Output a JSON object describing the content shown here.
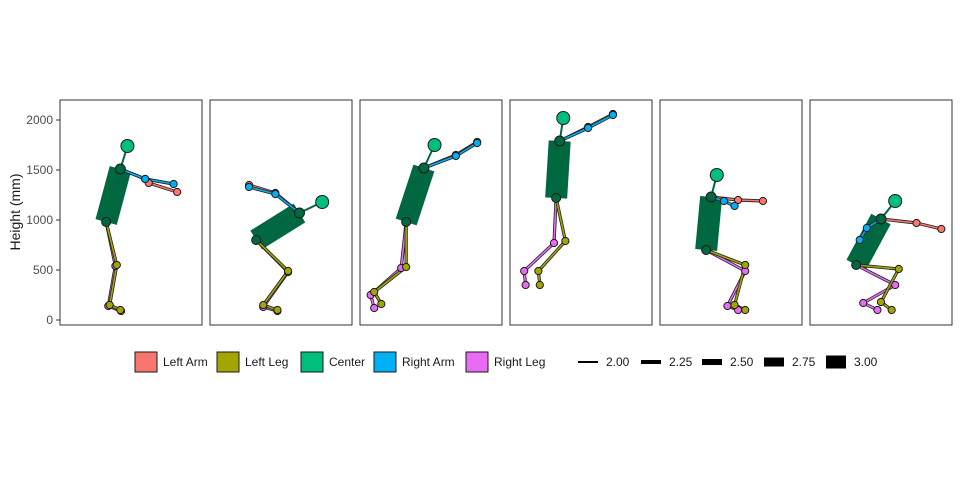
{
  "chart_data": {
    "type": "scatter",
    "ylabel": "Height (mm)",
    "ylim": [
      -50,
      2200
    ],
    "yticks": [
      0,
      500,
      1000,
      1500,
      2000
    ],
    "grid": false,
    "legend_position": "bottom",
    "colors": {
      "Left Arm": "#F8766D",
      "Left Leg": "#A3A500",
      "Center": "#00BF7D",
      "Right Arm": "#00B0F6",
      "Right Leg": "#E76BF3",
      "trunk": "#006841"
    },
    "legend": {
      "color_entries": [
        "Left Arm",
        "Left Leg",
        "Center",
        "Right Arm",
        "Right Leg"
      ],
      "size_entries": [
        "2.00",
        "2.25",
        "2.50",
        "2.75",
        "3.00"
      ]
    },
    "panels": [
      {
        "xlim": [
          0,
          10
        ],
        "head": [
          4.75,
          1740
        ],
        "neck": [
          4.25,
          1510
        ],
        "pelvis": [
          3.25,
          980
        ],
        "left_arm": [
          [
            4.25,
            1510
          ],
          [
            6.0,
            1410
          ],
          [
            6.25,
            1370
          ],
          [
            8.25,
            1280
          ]
        ],
        "right_arm": [
          [
            4.25,
            1510
          ],
          [
            6.0,
            1410
          ],
          [
            8.0,
            1360
          ]
        ],
        "left_leg": [
          [
            3.25,
            980
          ],
          [
            4.0,
            550
          ],
          [
            3.5,
            150
          ],
          [
            4.25,
            100
          ]
        ],
        "right_leg": [
          [
            3.25,
            980
          ],
          [
            3.9,
            540
          ],
          [
            3.4,
            140
          ],
          [
            4.3,
            90
          ]
        ]
      },
      {
        "xlim": [
          0,
          10
        ],
        "head": [
          7.9,
          1180
        ],
        "neck": [
          6.3,
          1070
        ],
        "pelvis": [
          3.25,
          800
        ],
        "left_arm": [
          [
            6.3,
            1070
          ],
          [
            4.6,
            1270
          ],
          [
            2.75,
            1350
          ]
        ],
        "right_arm": [
          [
            6.3,
            1070
          ],
          [
            4.6,
            1260
          ],
          [
            2.75,
            1330
          ]
        ],
        "left_leg": [
          [
            3.25,
            800
          ],
          [
            5.5,
            490
          ],
          [
            3.75,
            150
          ],
          [
            4.75,
            100
          ]
        ],
        "right_leg": [
          [
            3.25,
            800
          ],
          [
            5.5,
            480
          ],
          [
            3.75,
            130
          ],
          [
            4.75,
            90
          ]
        ]
      },
      {
        "xlim": [
          0,
          10
        ],
        "head": [
          5.25,
          1750
        ],
        "neck": [
          4.5,
          1520
        ],
        "pelvis": [
          3.25,
          980
        ],
        "left_arm": [
          [
            4.5,
            1520
          ],
          [
            6.75,
            1650
          ],
          [
            8.25,
            1780
          ]
        ],
        "right_arm": [
          [
            4.5,
            1520
          ],
          [
            6.75,
            1640
          ],
          [
            8.25,
            1770
          ]
        ],
        "left_leg": [
          [
            3.25,
            980
          ],
          [
            3.25,
            530
          ],
          [
            1.0,
            280
          ],
          [
            1.5,
            160
          ]
        ],
        "right_leg": [
          [
            3.25,
            980
          ],
          [
            2.9,
            520
          ],
          [
            0.75,
            250
          ],
          [
            1.0,
            120
          ]
        ]
      },
      {
        "xlim": [
          0,
          10
        ],
        "head": [
          3.75,
          2020
        ],
        "neck": [
          3.5,
          1790
        ],
        "pelvis": [
          3.25,
          1220
        ],
        "left_arm": [
          [
            3.5,
            1790
          ],
          [
            5.5,
            1930
          ],
          [
            7.25,
            2060
          ]
        ],
        "right_arm": [
          [
            3.5,
            1790
          ],
          [
            5.5,
            1920
          ],
          [
            7.25,
            2050
          ]
        ],
        "left_leg": [
          [
            3.25,
            1220
          ],
          [
            3.9,
            790
          ],
          [
            2.0,
            490
          ],
          [
            2.1,
            350
          ]
        ],
        "right_leg": [
          [
            3.25,
            1220
          ],
          [
            3.1,
            770
          ],
          [
            1.0,
            490
          ],
          [
            1.1,
            350
          ]
        ]
      },
      {
        "xlim": [
          0,
          10
        ],
        "head": [
          4.0,
          1450
        ],
        "neck": [
          3.6,
          1230
        ],
        "pelvis": [
          3.25,
          700
        ],
        "left_arm": [
          [
            3.6,
            1230
          ],
          [
            5.5,
            1200
          ],
          [
            7.25,
            1190
          ]
        ],
        "right_arm": [
          [
            3.6,
            1230
          ],
          [
            4.5,
            1190
          ],
          [
            5.25,
            1140
          ]
        ],
        "left_leg": [
          [
            3.25,
            700
          ],
          [
            6.0,
            550
          ],
          [
            5.25,
            150
          ],
          [
            6.0,
            100
          ]
        ],
        "right_leg": [
          [
            3.25,
            700
          ],
          [
            6.0,
            490
          ],
          [
            4.75,
            140
          ],
          [
            5.5,
            100
          ]
        ]
      },
      {
        "xlim": [
          0,
          10
        ],
        "head": [
          6.0,
          1190
        ],
        "neck": [
          5.0,
          1010
        ],
        "pelvis": [
          3.25,
          550
        ],
        "left_arm": [
          [
            5.0,
            1010
          ],
          [
            7.5,
            970
          ],
          [
            9.25,
            910
          ]
        ],
        "right_arm": [
          [
            5.0,
            1010
          ],
          [
            4.0,
            920
          ],
          [
            3.5,
            800
          ]
        ],
        "left_leg": [
          [
            3.25,
            550
          ],
          [
            6.25,
            510
          ],
          [
            5.0,
            180
          ],
          [
            5.75,
            100
          ]
        ],
        "right_leg": [
          [
            3.25,
            550
          ],
          [
            6.0,
            350
          ],
          [
            3.75,
            170
          ],
          [
            4.75,
            100
          ]
        ]
      }
    ]
  }
}
